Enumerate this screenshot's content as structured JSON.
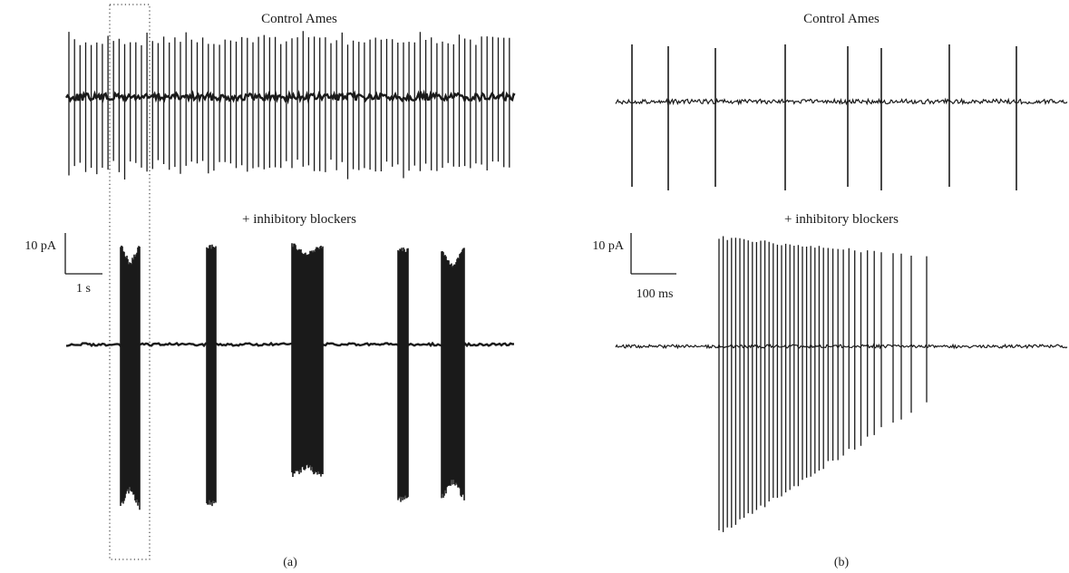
{
  "figure": {
    "panel_a": {
      "top_title": "Control Ames",
      "bottom_title": "+ inhibitory blockers",
      "scale_bar": {
        "amplitude_label": "10 pA",
        "time_label": "1 s"
      },
      "panel_label": "(a)",
      "highlight_box": "dotted-box"
    },
    "panel_b": {
      "top_title": "Control Ames",
      "bottom_title": "+ inhibitory blockers",
      "scale_bar": {
        "amplitude_label": "10 pA",
        "time_label": "100 ms"
      },
      "panel_label": "(b)"
    },
    "colors": {
      "trace": "#1a1a1a",
      "background": "#ffffff"
    }
  }
}
